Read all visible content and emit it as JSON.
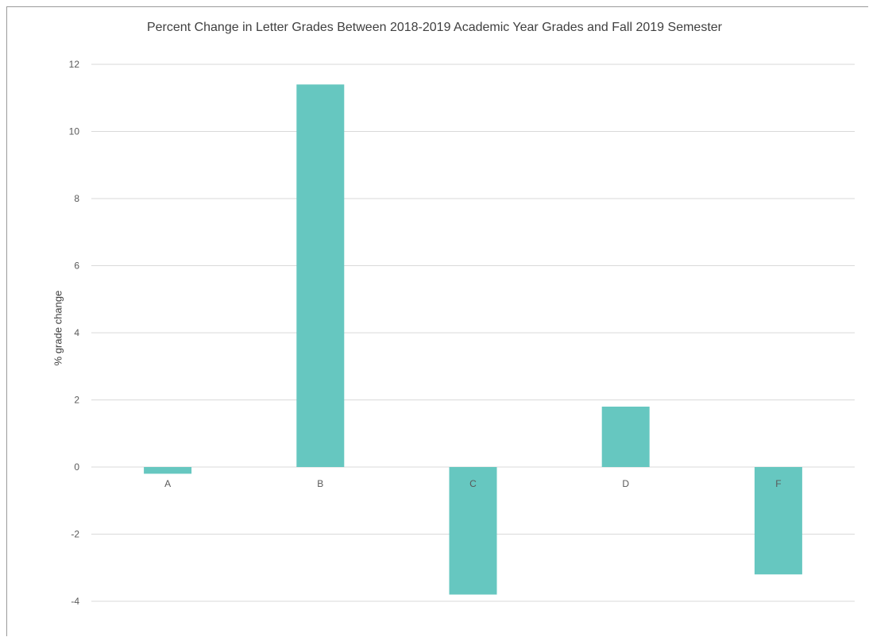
{
  "chart_data": {
    "type": "bar",
    "title": "Percent Change in Letter Grades Between 2018-2019 Academic Year Grades and Fall 2019 Semester",
    "xlabel": "",
    "ylabel": "% grade change",
    "categories": [
      "A",
      "B",
      "C",
      "D",
      "F"
    ],
    "series": [
      {
        "values": [
          -0.2,
          11.4,
          -3.8,
          1.8,
          -3.2
        ]
      }
    ],
    "ylim": [
      -4,
      12
    ],
    "yticks": [
      12,
      10,
      8,
      6,
      4,
      2,
      0,
      -2,
      -4
    ],
    "grid": true,
    "legend": "none",
    "bar_color": "#66c7c0"
  }
}
